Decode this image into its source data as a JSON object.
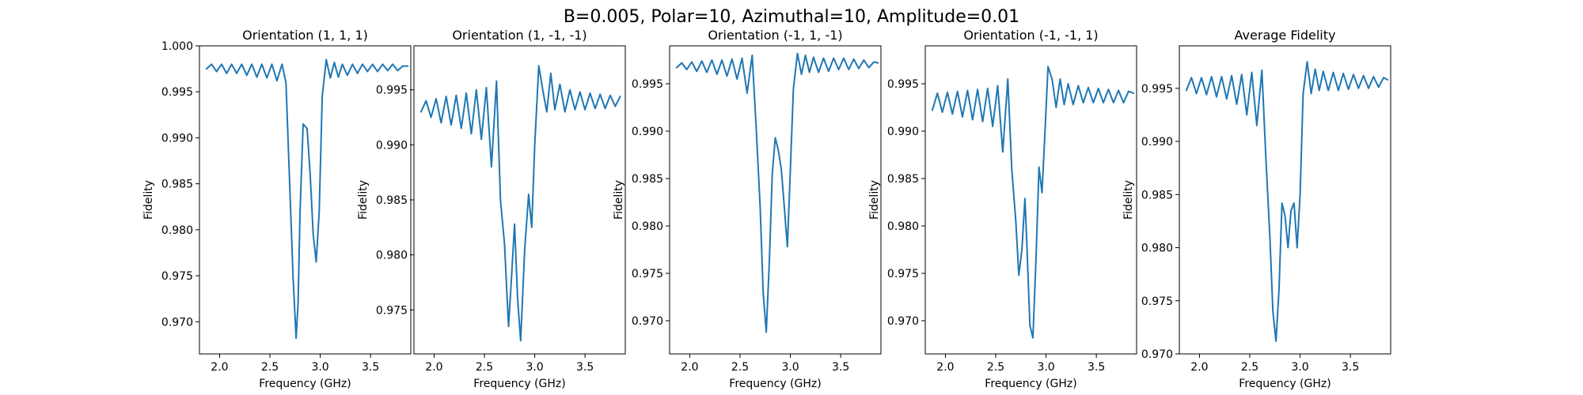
{
  "figure": {
    "suptitle": "B=0.005, Polar=10, Azimuthal=10, Amplitude=0.01"
  },
  "chart_data": [
    {
      "type": "line",
      "title": "Orientation (1, 1, 1)",
      "xlabel": "Frequency (GHz)",
      "ylabel": "Fidelity",
      "xlim": [
        1.8,
        3.9
      ],
      "ylim": [
        0.9665,
        1.0
      ],
      "xticks": [
        2.0,
        2.5,
        3.0,
        3.5
      ],
      "yticks": [
        0.97,
        0.975,
        0.98,
        0.985,
        0.99,
        0.995,
        1.0
      ],
      "ytick_decimals": 3,
      "grid": false,
      "color": "#1f77b4",
      "series": [
        {
          "x": [
            1.87,
            1.92,
            1.97,
            2.02,
            2.07,
            2.12,
            2.17,
            2.22,
            2.27,
            2.32,
            2.37,
            2.42,
            2.47,
            2.52,
            2.57,
            2.62,
            2.66,
            2.7,
            2.73,
            2.76,
            2.78,
            2.8,
            2.83,
            2.87,
            2.9,
            2.93,
            2.96,
            2.99,
            3.02,
            3.06,
            3.1,
            3.14,
            3.18,
            3.22,
            3.27,
            3.32,
            3.37,
            3.42,
            3.47,
            3.52,
            3.57,
            3.62,
            3.67,
            3.72,
            3.77,
            3.82,
            3.87
          ],
          "values": [
            0.9975,
            0.998,
            0.9972,
            0.998,
            0.997,
            0.998,
            0.997,
            0.998,
            0.9968,
            0.998,
            0.9966,
            0.998,
            0.9965,
            0.998,
            0.9962,
            0.998,
            0.996,
            0.984,
            0.975,
            0.9682,
            0.972,
            0.982,
            0.9915,
            0.991,
            0.986,
            0.9795,
            0.9765,
            0.982,
            0.9945,
            0.9985,
            0.9965,
            0.9982,
            0.9966,
            0.998,
            0.9968,
            0.998,
            0.997,
            0.998,
            0.9972,
            0.998,
            0.9972,
            0.998,
            0.9973,
            0.998,
            0.9973,
            0.9978,
            0.9978
          ]
        }
      ]
    },
    {
      "type": "line",
      "title": "Orientation (1, -1, -1)",
      "xlabel": "Frequency (GHz)",
      "ylabel": "Fidelity",
      "xlim": [
        1.8,
        3.9
      ],
      "ylim": [
        0.971,
        0.999
      ],
      "xticks": [
        2.0,
        2.5,
        3.0,
        3.5
      ],
      "yticks": [
        0.975,
        0.98,
        0.985,
        0.99,
        0.995
      ],
      "ytick_decimals": 3,
      "grid": false,
      "color": "#1f77b4",
      "series": [
        {
          "x": [
            1.87,
            1.92,
            1.97,
            2.02,
            2.07,
            2.12,
            2.17,
            2.22,
            2.27,
            2.32,
            2.37,
            2.42,
            2.47,
            2.52,
            2.57,
            2.62,
            2.66,
            2.7,
            2.74,
            2.77,
            2.8,
            2.83,
            2.86,
            2.9,
            2.94,
            2.97,
            3.0,
            3.04,
            3.08,
            3.12,
            3.16,
            3.2,
            3.25,
            3.3,
            3.35,
            3.4,
            3.45,
            3.5,
            3.55,
            3.6,
            3.65,
            3.7,
            3.75,
            3.8,
            3.85
          ],
          "values": [
            0.993,
            0.994,
            0.9925,
            0.9942,
            0.992,
            0.9944,
            0.9918,
            0.9945,
            0.9915,
            0.9947,
            0.991,
            0.995,
            0.9905,
            0.9952,
            0.988,
            0.9958,
            0.985,
            0.981,
            0.9735,
            0.978,
            0.9828,
            0.976,
            0.9722,
            0.9805,
            0.9855,
            0.9825,
            0.99,
            0.9972,
            0.995,
            0.993,
            0.9965,
            0.9932,
            0.9955,
            0.993,
            0.995,
            0.9932,
            0.9948,
            0.9932,
            0.9947,
            0.9933,
            0.9946,
            0.9933,
            0.9945,
            0.9935,
            0.9944
          ]
        }
      ]
    },
    {
      "type": "line",
      "title": "Orientation (-1, 1, -1)",
      "xlabel": "Frequency (GHz)",
      "ylabel": "Fidelity",
      "xlim": [
        1.8,
        3.9
      ],
      "ylim": [
        0.9665,
        0.999
      ],
      "xticks": [
        2.0,
        2.5,
        3.0,
        3.5
      ],
      "yticks": [
        0.97,
        0.975,
        0.98,
        0.985,
        0.99,
        0.995
      ],
      "ytick_decimals": 3,
      "grid": false,
      "color": "#1f77b4",
      "series": [
        {
          "x": [
            1.87,
            1.92,
            1.97,
            2.02,
            2.07,
            2.12,
            2.17,
            2.22,
            2.27,
            2.32,
            2.37,
            2.42,
            2.47,
            2.52,
            2.57,
            2.62,
            2.66,
            2.7,
            2.73,
            2.76,
            2.79,
            2.82,
            2.85,
            2.88,
            2.91,
            2.94,
            2.97,
            3.0,
            3.03,
            3.07,
            3.11,
            3.15,
            3.19,
            3.23,
            3.28,
            3.33,
            3.38,
            3.43,
            3.48,
            3.53,
            3.58,
            3.63,
            3.68,
            3.73,
            3.78,
            3.83,
            3.87
          ],
          "values": [
            0.9967,
            0.9972,
            0.9965,
            0.9973,
            0.9963,
            0.9974,
            0.9962,
            0.9975,
            0.996,
            0.9975,
            0.9958,
            0.9976,
            0.9955,
            0.9977,
            0.994,
            0.998,
            0.9905,
            0.982,
            0.973,
            0.9688,
            0.976,
            0.9855,
            0.9893,
            0.988,
            0.986,
            0.982,
            0.9778,
            0.986,
            0.9945,
            0.9982,
            0.996,
            0.998,
            0.9962,
            0.9978,
            0.9962,
            0.9977,
            0.9963,
            0.9977,
            0.9965,
            0.9977,
            0.9965,
            0.9976,
            0.9966,
            0.9975,
            0.9967,
            0.9973,
            0.9972
          ]
        }
      ]
    },
    {
      "type": "line",
      "title": "Orientation (-1, -1, 1)",
      "xlabel": "Frequency (GHz)",
      "ylabel": "Fidelity",
      "xlim": [
        1.8,
        3.9
      ],
      "ylim": [
        0.9665,
        0.999
      ],
      "xticks": [
        2.0,
        2.5,
        3.0,
        3.5
      ],
      "yticks": [
        0.97,
        0.975,
        0.98,
        0.985,
        0.99,
        0.995
      ],
      "ytick_decimals": 3,
      "grid": false,
      "color": "#1f77b4",
      "series": [
        {
          "x": [
            1.87,
            1.92,
            1.97,
            2.02,
            2.07,
            2.12,
            2.17,
            2.22,
            2.27,
            2.32,
            2.37,
            2.42,
            2.47,
            2.52,
            2.57,
            2.62,
            2.66,
            2.7,
            2.73,
            2.76,
            2.79,
            2.81,
            2.84,
            2.87,
            2.9,
            2.93,
            2.96,
            2.99,
            3.02,
            3.06,
            3.1,
            3.14,
            3.18,
            3.22,
            3.27,
            3.32,
            3.37,
            3.42,
            3.47,
            3.52,
            3.57,
            3.62,
            3.67,
            3.72,
            3.77,
            3.82,
            3.87
          ],
          "values": [
            0.9922,
            0.994,
            0.992,
            0.9941,
            0.9918,
            0.9942,
            0.9915,
            0.9943,
            0.9912,
            0.9944,
            0.991,
            0.9945,
            0.9905,
            0.9948,
            0.9878,
            0.9955,
            0.986,
            0.9805,
            0.9748,
            0.9775,
            0.9829,
            0.978,
            0.9695,
            0.9682,
            0.9765,
            0.9862,
            0.9835,
            0.99,
            0.9968,
            0.9955,
            0.9925,
            0.9955,
            0.9928,
            0.995,
            0.9928,
            0.9948,
            0.993,
            0.9946,
            0.993,
            0.9945,
            0.993,
            0.9944,
            0.993,
            0.9943,
            0.993,
            0.9942,
            0.994
          ]
        }
      ]
    },
    {
      "type": "line",
      "title": "Average Fidelity",
      "xlabel": "Frequency (GHz)",
      "ylabel": "Fidelity",
      "xlim": [
        1.8,
        3.9
      ],
      "ylim": [
        0.97,
        0.999
      ],
      "xticks": [
        2.0,
        2.5,
        3.0,
        3.5
      ],
      "yticks": [
        0.97,
        0.975,
        0.98,
        0.985,
        0.99,
        0.995
      ],
      "ytick_decimals": 3,
      "grid": false,
      "color": "#1f77b4",
      "series": [
        {
          "x": [
            1.87,
            1.92,
            1.97,
            2.02,
            2.07,
            2.12,
            2.17,
            2.22,
            2.27,
            2.32,
            2.37,
            2.42,
            2.47,
            2.52,
            2.57,
            2.62,
            2.66,
            2.7,
            2.73,
            2.76,
            2.79,
            2.82,
            2.85,
            2.88,
            2.91,
            2.94,
            2.97,
            3.0,
            3.03,
            3.07,
            3.11,
            3.15,
            3.19,
            3.23,
            3.28,
            3.33,
            3.38,
            3.43,
            3.48,
            3.53,
            3.58,
            3.63,
            3.68,
            3.73,
            3.78,
            3.83,
            3.87
          ],
          "values": [
            0.9948,
            0.996,
            0.9945,
            0.996,
            0.9944,
            0.9961,
            0.9942,
            0.9961,
            0.994,
            0.9962,
            0.9935,
            0.9963,
            0.9925,
            0.9965,
            0.9915,
            0.9967,
            0.9885,
            0.981,
            0.974,
            0.9712,
            0.976,
            0.9842,
            0.983,
            0.98,
            0.9835,
            0.9842,
            0.98,
            0.985,
            0.9945,
            0.9975,
            0.9945,
            0.9968,
            0.9948,
            0.9966,
            0.9948,
            0.9965,
            0.9948,
            0.9964,
            0.9949,
            0.9963,
            0.995,
            0.9962,
            0.995,
            0.9961,
            0.9951,
            0.996,
            0.9958
          ]
        }
      ]
    }
  ]
}
